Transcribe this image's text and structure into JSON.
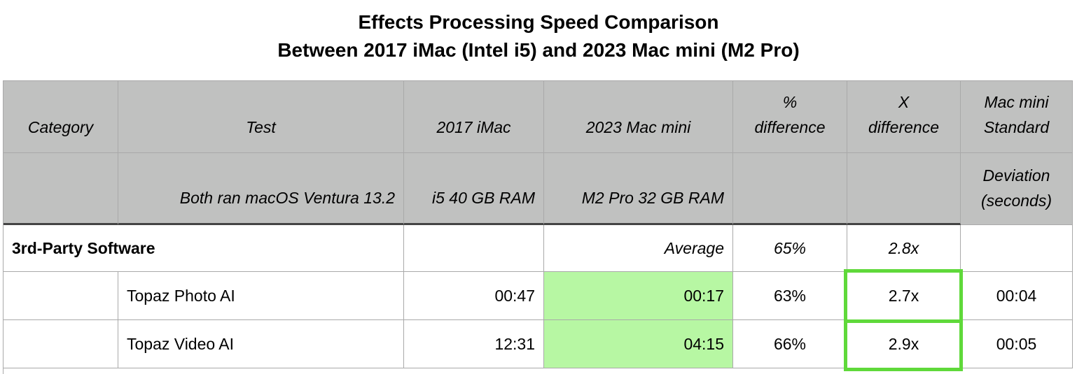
{
  "title": {
    "line1": "Effects Processing Speed Comparison",
    "line2": "Between 2017 iMac (Intel i5) and 2023 Mac mini (M2 Pro)"
  },
  "header": {
    "row1": [
      "Category",
      "Test",
      "2017 iMac",
      "2023 Mac mini",
      "% difference",
      "X difference",
      "Mac mini Standard"
    ],
    "row2": [
      "",
      "Both ran macOS Ventura 13.2",
      "i5 40 GB RAM",
      "M2 Pro 32 GB RAM",
      "",
      "",
      "Deviation (seconds)"
    ]
  },
  "section": {
    "label": "3rd-Party Software",
    "avg_label": "Average",
    "pct": "65%",
    "x": "2.8x"
  },
  "rows": [
    {
      "test": "Topaz Photo AI",
      "imac": "00:47",
      "mini": "00:17",
      "pct": "63%",
      "x": "2.7x",
      "sd": "00:04"
    },
    {
      "test": "Topaz Video AI",
      "imac": "12:31",
      "mini": "04:15",
      "pct": "66%",
      "x": "2.9x",
      "sd": "00:05"
    }
  ],
  "colors": {
    "header_bg": "#c0c1c0",
    "faster_fill": "#b7f7a3",
    "highlight": "#5fd93a"
  }
}
